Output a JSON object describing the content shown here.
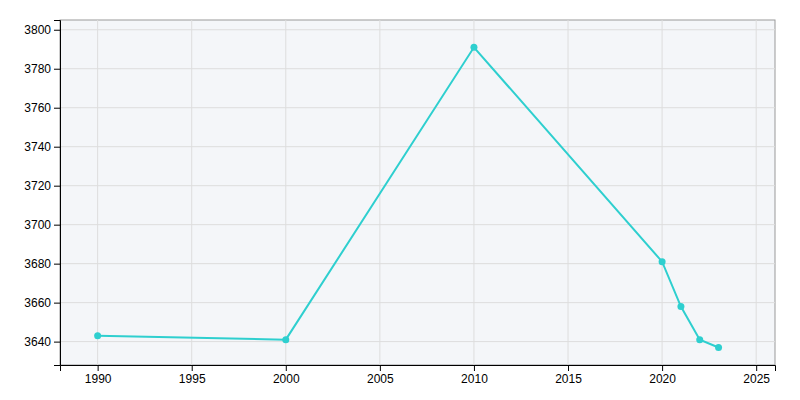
{
  "chart_data": {
    "type": "line",
    "x": [
      1990,
      2000,
      2010,
      2020,
      2021,
      2022,
      2023
    ],
    "values": [
      3643,
      3641,
      3791,
      3681,
      3658,
      3641,
      3637
    ],
    "color": "#2ecfcf",
    "marker": "circle",
    "xlim": [
      1988,
      2026
    ],
    "ylim": [
      3628,
      3805
    ],
    "xticks": [
      1990,
      1995,
      2000,
      2005,
      2010,
      2015,
      2020,
      2025
    ],
    "yticks": [
      3640,
      3660,
      3680,
      3700,
      3720,
      3740,
      3760,
      3780,
      3800
    ],
    "grid": true
  }
}
